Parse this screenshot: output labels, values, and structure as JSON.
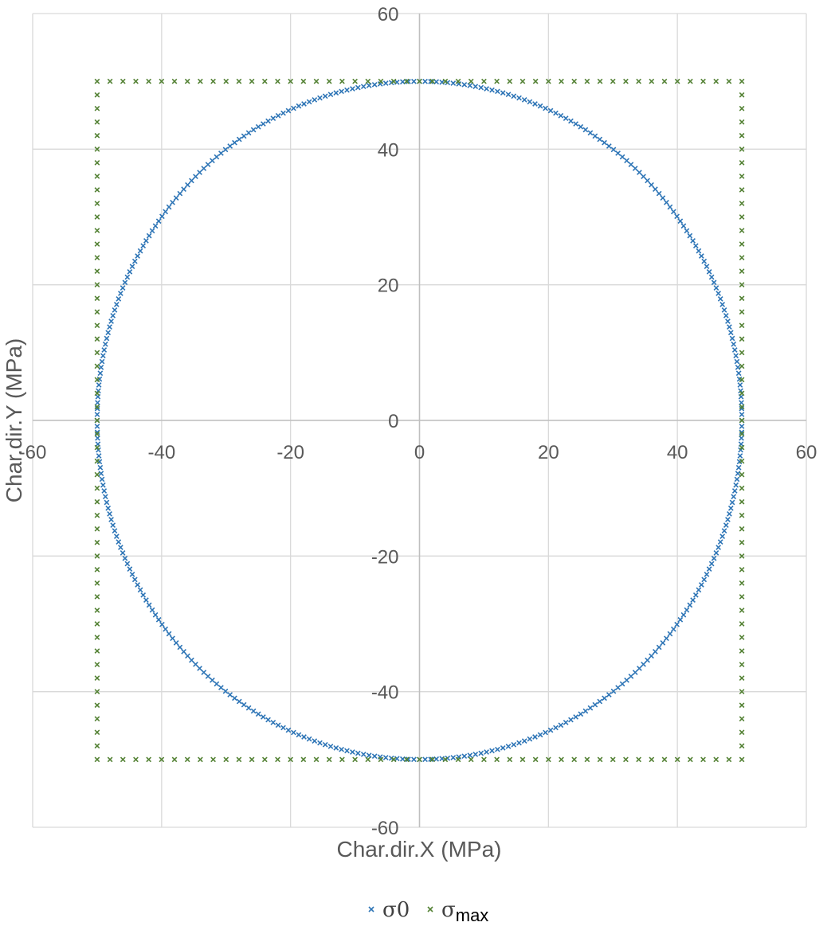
{
  "chart_data": {
    "type": "scatter",
    "title": "",
    "xlabel": "Char.dir.X (MPa)",
    "ylabel": "Char.dir.Y (MPa)",
    "xlim": [
      -60,
      60
    ],
    "ylim": [
      -60,
      60
    ],
    "xticks": [
      -60,
      -40,
      -20,
      0,
      20,
      40,
      60
    ],
    "yticks": [
      -60,
      -40,
      -20,
      0,
      20,
      40,
      60
    ],
    "grid": true,
    "legend_position": "bottom",
    "marker": "x",
    "series": [
      {
        "name": "σ0",
        "color": "#2E75B6",
        "shape": "circle",
        "center": [
          0,
          0
        ],
        "radius": 50,
        "point_count": 360
      },
      {
        "name": "σmax",
        "legend_main": "σ",
        "legend_sub": "max",
        "color": "#548235",
        "shape": "square",
        "x_range": [
          -50,
          50
        ],
        "y_range": [
          -50,
          50
        ],
        "step": 2
      }
    ]
  }
}
